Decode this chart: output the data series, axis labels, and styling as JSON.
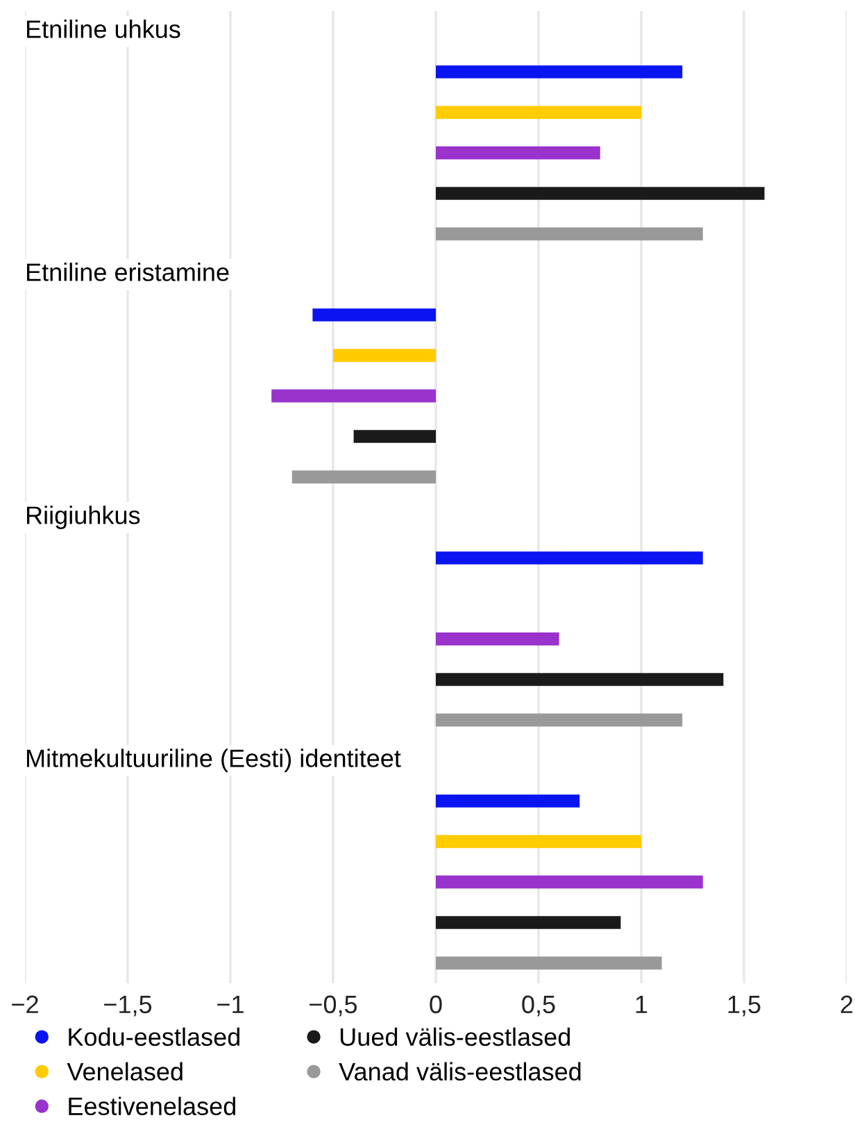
{
  "chart_data": {
    "type": "bar",
    "orientation": "horizontal",
    "categories": [
      null,
      null,
      null,
      null,
      null,
      null,
      null,
      null,
      null,
      null,
      null,
      null,
      null,
      null,
      null,
      null,
      null,
      null,
      null,
      null,
      null,
      null,
      null,
      null
    ],
    "xlim": [
      -2,
      2
    ],
    "xticks": [
      {
        "value": -2,
        "label": "−2"
      },
      {
        "value": -1.5,
        "label": "−1,5"
      },
      {
        "value": -1,
        "label": "−1"
      },
      {
        "value": -0.5,
        "label": "−0,5"
      },
      0,
      {
        "value": 0.5,
        "label": "0,5"
      },
      1,
      {
        "value": 1.5,
        "label": "1,5"
      },
      2
    ],
    "grid": "x",
    "legend": "bottom",
    "annotations": [
      "Etniline uhkus",
      "Etniline eristamine",
      "Riigiuhkus",
      "Mitmekultuuriline (Eesti) identiteet"
    ],
    "series": [
      {
        "name": "Kodu-eestlased",
        "color": "#0a14f0",
        "values": [
          null,
          1.2,
          null,
          null,
          null,
          null,
          null,
          -0.6,
          null,
          null,
          null,
          null,
          null,
          1.3,
          null,
          null,
          null,
          null,
          null,
          0.7,
          null,
          null,
          null,
          null
        ]
      },
      {
        "name": "Venelased",
        "color": "#ffcc00",
        "values": [
          null,
          null,
          1.0,
          null,
          null,
          null,
          null,
          null,
          -0.5,
          null,
          null,
          null,
          null,
          null,
          null,
          null,
          null,
          null,
          null,
          null,
          1.0,
          null,
          null,
          null
        ]
      },
      {
        "name": "Eestivenelased",
        "color": "#9933cc",
        "values": [
          null,
          null,
          null,
          0.8,
          null,
          null,
          null,
          null,
          null,
          -0.8,
          null,
          null,
          null,
          null,
          null,
          0.6,
          null,
          null,
          null,
          null,
          null,
          1.3,
          null,
          null
        ]
      },
      {
        "name": "Uued välis-eestlased",
        "color": "#1a1a1a",
        "values": [
          null,
          null,
          null,
          null,
          1.6,
          null,
          null,
          null,
          null,
          null,
          -0.4,
          null,
          null,
          null,
          null,
          null,
          1.4,
          null,
          null,
          null,
          null,
          null,
          0.9,
          null
        ]
      },
      {
        "name": "Vanad välis-eestlased",
        "color": "#999999",
        "values": [
          null,
          null,
          null,
          null,
          null,
          1.3,
          null,
          null,
          null,
          null,
          null,
          -0.7,
          null,
          null,
          null,
          null,
          null,
          1.2,
          null,
          null,
          null,
          null,
          null,
          1.1
        ]
      }
    ]
  }
}
